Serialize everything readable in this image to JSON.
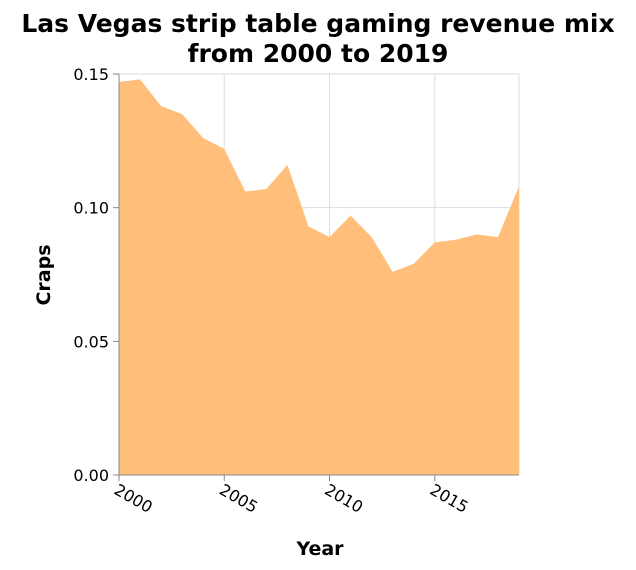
{
  "chart_data": {
    "type": "area",
    "title_lines": [
      "Las Vegas strip table gaming revenue mix",
      "from 2000 to 2019"
    ],
    "xlabel": "Year",
    "ylabel": "Craps",
    "xlim": [
      2000,
      2019
    ],
    "ylim": [
      0,
      0.15
    ],
    "x_ticks": [
      2000,
      2005,
      2010,
      2015
    ],
    "x_tick_labels": [
      "2000",
      "2005",
      "2010",
      "2015"
    ],
    "y_ticks": [
      0,
      0.05,
      0.1,
      0.15
    ],
    "y_tick_labels": [
      "0.00",
      "0.05",
      "0.10",
      "0.15"
    ],
    "grid": true,
    "fill_color": "#FFBF7A",
    "series": [
      {
        "x": [
          2000,
          2001,
          2002,
          2003,
          2004,
          2005,
          2006,
          2007,
          2008,
          2009,
          2010,
          2011,
          2012,
          2013,
          2014,
          2015,
          2016,
          2017,
          2018,
          2019
        ],
        "values": [
          0.147,
          0.148,
          0.138,
          0.135,
          0.126,
          0.122,
          0.106,
          0.107,
          0.116,
          0.093,
          0.089,
          0.097,
          0.089,
          0.076,
          0.079,
          0.087,
          0.088,
          0.09,
          0.089,
          0.108
        ]
      }
    ]
  }
}
